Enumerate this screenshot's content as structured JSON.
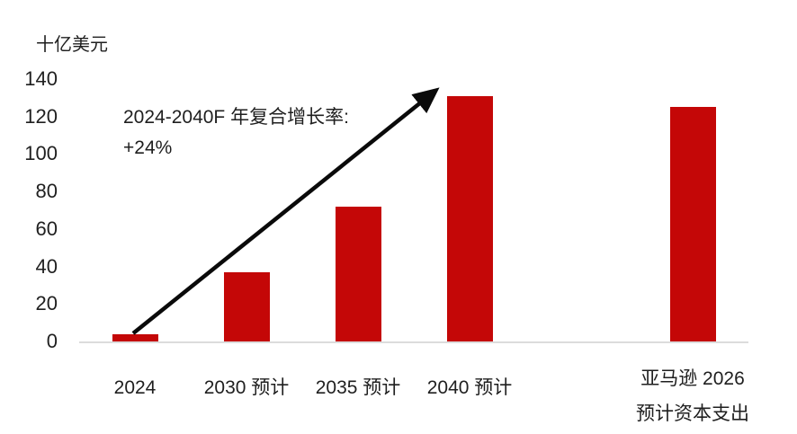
{
  "chart_data": {
    "type": "bar",
    "title": "",
    "unit_label": "十亿美元",
    "categories": [
      "2024",
      "2030 预计",
      "2035 预计",
      "2040 预计",
      "",
      "亚马逊 2026 预计资本支出"
    ],
    "values": [
      4,
      37,
      72,
      131,
      null,
      125
    ],
    "slots": [
      {
        "label_lines": [
          "2024"
        ],
        "value": 4
      },
      {
        "label_lines": [
          "2030 预计"
        ],
        "value": 37
      },
      {
        "label_lines": [
          "2035 预计"
        ],
        "value": 72
      },
      {
        "label_lines": [
          "2040 预计"
        ],
        "value": 131
      },
      {
        "label_lines": [],
        "value": null
      },
      {
        "label_lines": [
          "亚马逊 2026",
          "预计资本支出"
        ],
        "value": 125
      }
    ],
    "yticks": [
      0,
      20,
      40,
      60,
      80,
      100,
      120,
      140
    ],
    "ylim": [
      0,
      140
    ],
    "grid": false,
    "legend_position": "none",
    "bar_color": "#C40707",
    "axis_line_color": "#DCDCDC",
    "text_color": "#1F1F1F",
    "arrow_color": "#0A0A0A",
    "annotation": {
      "line1": "2024-2040F 年复合增长率:",
      "line2": "+24%"
    },
    "arrow": {
      "from_category": "2024",
      "to_category": "2040 预计",
      "meaning": "CAGR growth arrow"
    }
  }
}
